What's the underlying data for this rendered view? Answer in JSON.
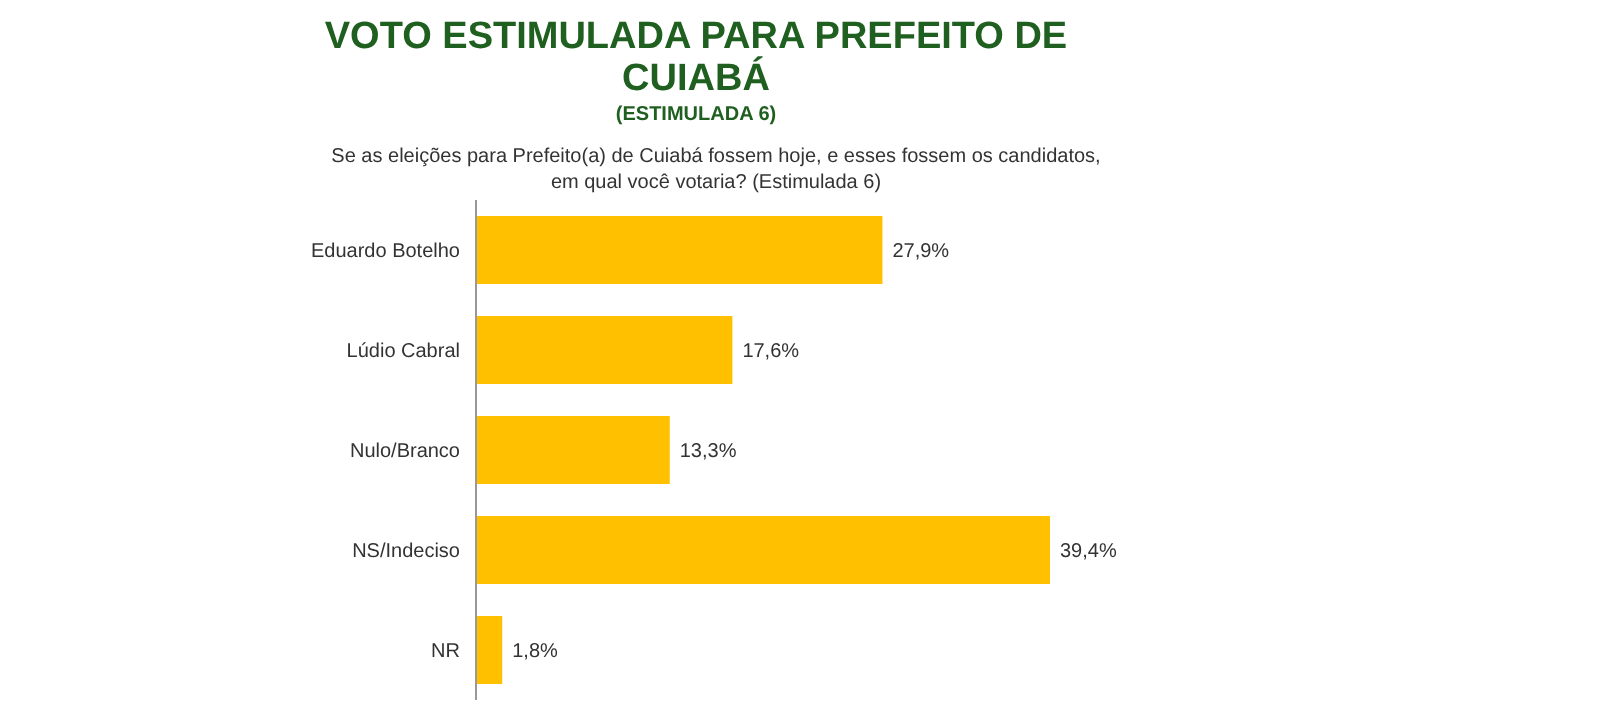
{
  "chart_data": {
    "type": "bar",
    "orientation": "horizontal",
    "title": "VOTO ESTIMULADA PARA PREFEITO DE CUIABÁ",
    "subtitle": "(ESTIMULADA 6)",
    "annotations": [
      "Se as eleições para Prefeito(a) de Cuiabá fossem hoje, e esses fossem os candidatos, em qual você votaria? (Estimulada 6)"
    ],
    "categories": [
      "Eduardo Botelho",
      "Lúdio Cabral",
      "Nulo/Branco",
      "NS/Indeciso",
      "NR"
    ],
    "values": [
      27.9,
      17.6,
      13.3,
      39.4,
      1.8
    ],
    "value_labels": [
      "27,9%",
      "17,6%",
      "13,3%",
      "39,4%",
      "1,8%"
    ],
    "color": "#ffc000",
    "grid": false,
    "legend": false,
    "tick_labels": "y"
  }
}
